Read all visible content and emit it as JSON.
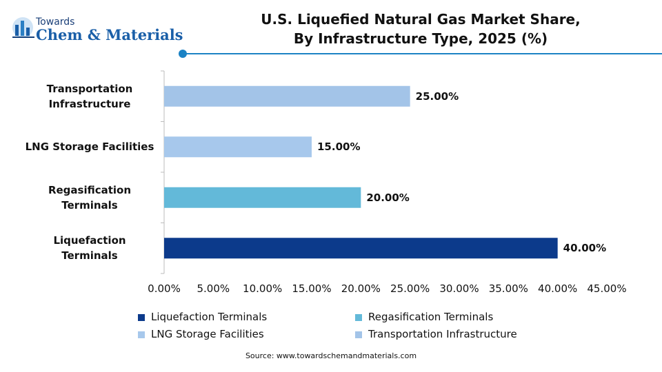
{
  "logo": {
    "top": "Towards",
    "bottom": "Chem & Materials"
  },
  "chart_data": {
    "type": "bar",
    "orientation": "horizontal",
    "title": "U.S. Liquefied Natural Gas Market Share,\nBy Infrastructure Type, 2025 (%)",
    "categories": [
      "Liquefaction\nTerminals",
      "Regasification\nTerminals",
      "LNG Storage Facilities",
      "Transportation\nInfrastructure"
    ],
    "values": [
      40,
      20,
      15,
      25
    ],
    "value_labels": [
      "40.00%",
      "20.00%",
      "15.00%",
      "25.00%"
    ],
    "colors": [
      "#0c3a8b",
      "#63b9d9",
      "#a7c8ec",
      "#a3c4e8"
    ],
    "xlim": [
      0,
      45
    ],
    "xticks": [
      {
        "value": 0,
        "label": "0.00%"
      },
      {
        "value": 5,
        "label": "5.00%"
      },
      {
        "value": 10,
        "label": "10.00%"
      },
      {
        "value": 15,
        "label": "15.00%"
      },
      {
        "value": 20,
        "label": "20.00%"
      },
      {
        "value": 25,
        "label": "25.00%"
      },
      {
        "value": 30,
        "label": "30.00%"
      },
      {
        "value": 35,
        "label": "35.00%"
      },
      {
        "value": 40,
        "label": "40.00%"
      },
      {
        "value": 45,
        "label": "45.00%"
      }
    ],
    "grid": false,
    "source": "Source: www.towardschemandmaterials.com"
  }
}
